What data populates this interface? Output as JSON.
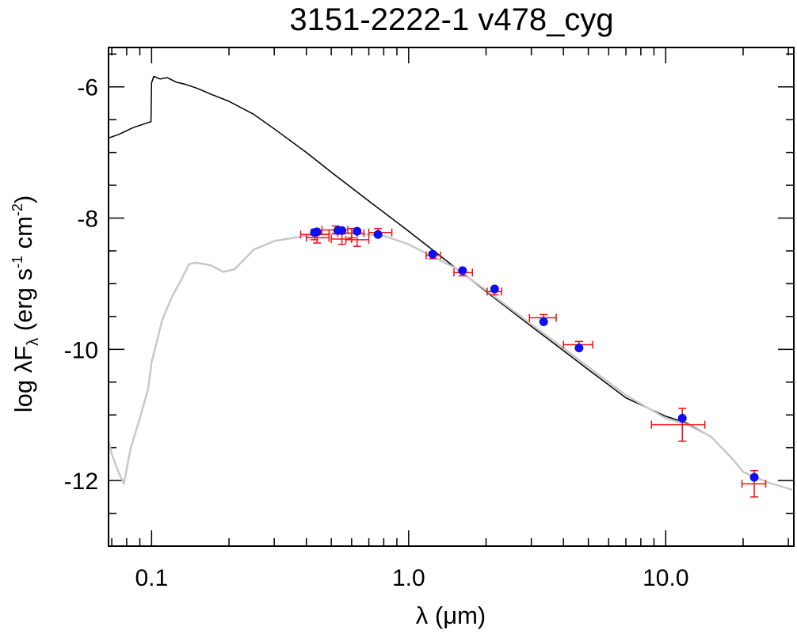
{
  "chart_data": {
    "type": "scatter",
    "title": "3151-2222-1   v478_cyg",
    "xlabel": {
      "pre": "λ (",
      "mu": "μ",
      "post": "m)"
    },
    "ylabel": {
      "base": "log λF",
      "sub": "λ",
      "units_a": " (erg s",
      "exp_a": "-1",
      "units_b": " cm",
      "exp_b": "-2",
      "units_c": ")"
    },
    "x_scale": "log",
    "xlim": [
      0.068,
      31.5
    ],
    "ylim": [
      -13.0,
      -5.4
    ],
    "x_ticks": [
      {
        "value": 0.1,
        "label": "0.1"
      },
      {
        "value": 1.0,
        "label": "1.0"
      },
      {
        "value": 10.0,
        "label": "10.0"
      }
    ],
    "y_ticks": [
      {
        "value": -6,
        "label": "-6"
      },
      {
        "value": -8,
        "label": "-8"
      },
      {
        "value": -10,
        "label": "-10"
      },
      {
        "value": -12,
        "label": "-12"
      }
    ],
    "colors": {
      "model": "#000000",
      "reddened_model": "#c8c8c8",
      "observed": "#ee1111",
      "synthetic": "#1010ee"
    },
    "series": [
      {
        "kind": "line",
        "color": "#000000",
        "points": [
          [
            0.068,
            -6.78
          ],
          [
            0.075,
            -6.72
          ],
          [
            0.085,
            -6.62
          ],
          [
            0.0995,
            -6.53
          ],
          [
            0.1,
            -5.94
          ],
          [
            0.102,
            -5.84
          ],
          [
            0.108,
            -5.88
          ],
          [
            0.115,
            -5.86
          ],
          [
            0.125,
            -5.93
          ],
          [
            0.135,
            -5.96
          ],
          [
            0.15,
            -6.02
          ],
          [
            0.17,
            -6.11
          ],
          [
            0.2,
            -6.22
          ],
          [
            0.25,
            -6.42
          ],
          [
            0.3,
            -6.64
          ],
          [
            0.4,
            -7.0
          ],
          [
            0.5,
            -7.3
          ],
          [
            0.7,
            -7.74
          ],
          [
            1.0,
            -8.2
          ],
          [
            1.5,
            -8.74
          ],
          [
            2.0,
            -9.12
          ],
          [
            3.0,
            -9.65
          ],
          [
            4.0,
            -10.02
          ],
          [
            5.0,
            -10.31
          ],
          [
            7.0,
            -10.74
          ],
          [
            10.0,
            -11.02
          ],
          [
            12.0,
            -11.12
          ],
          [
            15.0,
            -11.33
          ],
          [
            18.0,
            -11.65
          ],
          [
            20.0,
            -11.87
          ],
          [
            25.0,
            -12.03
          ],
          [
            31.0,
            -12.14
          ]
        ]
      },
      {
        "kind": "line",
        "color": "#c8c8c8",
        "points": [
          [
            0.068,
            -11.4
          ],
          [
            0.07,
            -11.6
          ],
          [
            0.074,
            -11.85
          ],
          [
            0.078,
            -12.05
          ],
          [
            0.083,
            -11.5
          ],
          [
            0.09,
            -11.05
          ],
          [
            0.097,
            -10.6
          ],
          [
            0.1,
            -10.2
          ],
          [
            0.11,
            -9.55
          ],
          [
            0.12,
            -9.2
          ],
          [
            0.13,
            -8.95
          ],
          [
            0.14,
            -8.7
          ],
          [
            0.15,
            -8.68
          ],
          [
            0.17,
            -8.72
          ],
          [
            0.19,
            -8.82
          ],
          [
            0.21,
            -8.78
          ],
          [
            0.25,
            -8.48
          ],
          [
            0.3,
            -8.35
          ],
          [
            0.4,
            -8.27
          ],
          [
            0.5,
            -8.24
          ],
          [
            0.6,
            -8.23
          ],
          [
            0.8,
            -8.27
          ],
          [
            1.0,
            -8.4
          ],
          [
            1.5,
            -8.75
          ],
          [
            2.0,
            -9.1
          ],
          [
            3.0,
            -9.62
          ],
          [
            4.0,
            -9.98
          ],
          [
            5.0,
            -10.27
          ],
          [
            7.0,
            -10.7
          ],
          [
            10.0,
            -11.05
          ],
          [
            12.0,
            -11.14
          ],
          [
            15.0,
            -11.33
          ],
          [
            18.0,
            -11.65
          ],
          [
            20.0,
            -11.87
          ],
          [
            25.0,
            -12.03
          ],
          [
            31.0,
            -12.14
          ]
        ]
      },
      {
        "kind": "errorbar",
        "color": "#ee1111",
        "points": [
          {
            "x": 0.43,
            "y": -8.25,
            "xlo": 0.38,
            "xhi": 0.49,
            "ylo": -8.33,
            "yhi": -8.17
          },
          {
            "x": 0.44,
            "y": -8.3,
            "xlo": 0.4,
            "xhi": 0.49,
            "ylo": -8.38,
            "yhi": -8.22
          },
          {
            "x": 0.52,
            "y": -8.18,
            "xlo": 0.46,
            "xhi": 0.58,
            "ylo": -8.24,
            "yhi": -8.12
          },
          {
            "x": 0.55,
            "y": -8.32,
            "xlo": 0.5,
            "xhi": 0.6,
            "ylo": -8.4,
            "yhi": -8.24
          },
          {
            "x": 0.6,
            "y": -8.23,
            "xlo": 0.53,
            "xhi": 0.67,
            "ylo": -8.3,
            "yhi": -8.16
          },
          {
            "x": 0.63,
            "y": -8.33,
            "xlo": 0.57,
            "xhi": 0.7,
            "ylo": -8.43,
            "yhi": -8.23
          },
          {
            "x": 0.76,
            "y": -8.22,
            "xlo": 0.7,
            "xhi": 0.86,
            "ylo": -8.28,
            "yhi": -8.16
          },
          {
            "x": 1.24,
            "y": -8.57,
            "xlo": 1.17,
            "xhi": 1.33,
            "ylo": -8.62,
            "yhi": -8.52
          },
          {
            "x": 1.62,
            "y": -8.83,
            "xlo": 1.5,
            "xhi": 1.77,
            "ylo": -8.88,
            "yhi": -8.78
          },
          {
            "x": 2.16,
            "y": -9.12,
            "xlo": 2.02,
            "xhi": 2.3,
            "ylo": -9.17,
            "yhi": -9.07
          },
          {
            "x": 3.35,
            "y": -9.52,
            "xlo": 2.95,
            "xhi": 3.75,
            "ylo": -9.57,
            "yhi": -9.47
          },
          {
            "x": 4.6,
            "y": -9.93,
            "xlo": 4.0,
            "xhi": 5.2,
            "ylo": -9.98,
            "yhi": -9.88
          },
          {
            "x": 11.6,
            "y": -11.15,
            "xlo": 8.8,
            "xhi": 14.2,
            "ylo": -11.4,
            "yhi": -10.9
          },
          {
            "x": 22.1,
            "y": -12.05,
            "xlo": 19.8,
            "xhi": 24.5,
            "ylo": -12.25,
            "yhi": -11.85
          }
        ]
      },
      {
        "kind": "dots",
        "color": "#1010ee",
        "points": [
          [
            0.43,
            -8.22
          ],
          [
            0.44,
            -8.21
          ],
          [
            0.53,
            -8.19
          ],
          [
            0.55,
            -8.19
          ],
          [
            0.63,
            -8.2
          ],
          [
            0.76,
            -8.25
          ],
          [
            1.24,
            -8.55
          ],
          [
            1.62,
            -8.8
          ],
          [
            2.16,
            -9.08
          ],
          [
            3.35,
            -9.58
          ],
          [
            4.6,
            -9.98
          ],
          [
            11.6,
            -11.05
          ],
          [
            22.1,
            -11.95
          ]
        ]
      }
    ]
  }
}
